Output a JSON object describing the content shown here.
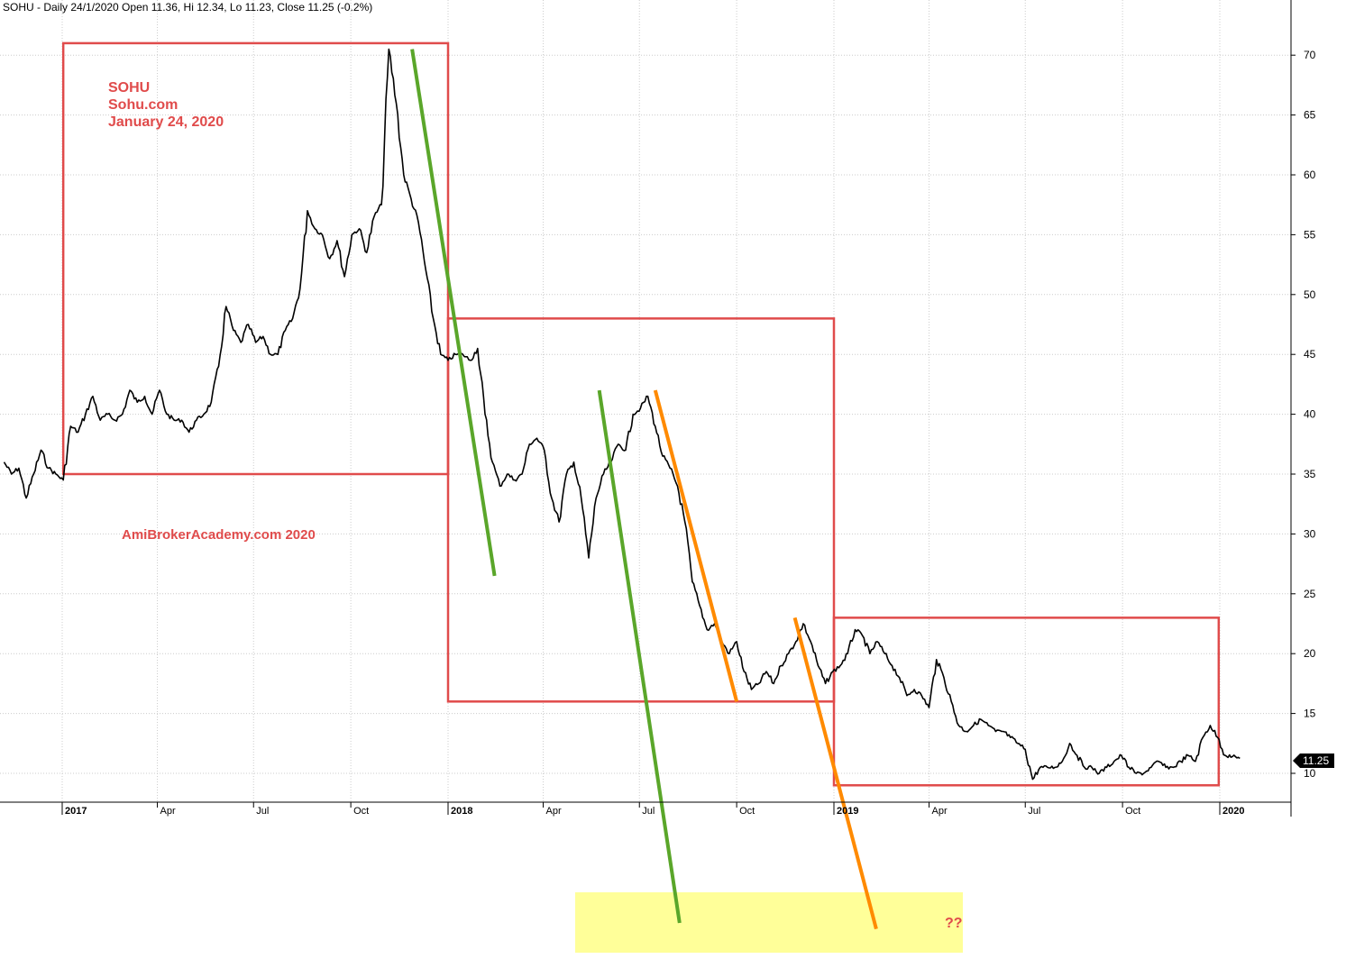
{
  "header": "SOHU - Daily 24/1/2020 Open 11.36, Hi 12.34, Lo 11.23, Close 11.25 (-0.2%)",
  "colors": {
    "price": "#000000",
    "box": "#e04b4b",
    "green_line": "#5aa62a",
    "orange_line": "#ff8a00",
    "highlight": "#ffff99",
    "annotation": "#e04b4b",
    "grid": "#cccccc",
    "badge": "#000000"
  },
  "annotations": {
    "title_lines": [
      "SOHU",
      "Sohu.com",
      "January 24, 2020"
    ],
    "watermark": "AmiBrokerAcademy.com  2020",
    "question": "??"
  },
  "last_price_label": "11.25",
  "chart_data": {
    "type": "line",
    "ylim": [
      8.5,
      72
    ],
    "y_ticks": [
      10,
      15,
      20,
      25,
      30,
      35,
      40,
      45,
      50,
      55,
      60,
      65,
      70
    ],
    "x_ticks": [
      {
        "label": "2017",
        "major": true
      },
      {
        "label": "Apr",
        "major": false
      },
      {
        "label": "Jul",
        "major": false
      },
      {
        "label": "Oct",
        "major": false
      },
      {
        "label": "2018",
        "major": true
      },
      {
        "label": "Apr",
        "major": false
      },
      {
        "label": "Jul",
        "major": false
      },
      {
        "label": "Oct",
        "major": false
      },
      {
        "label": "2019",
        "major": true
      },
      {
        "label": "Apr",
        "major": false
      },
      {
        "label": "Jul",
        "major": false
      },
      {
        "label": "Oct",
        "major": false
      },
      {
        "label": "2020",
        "major": true
      }
    ],
    "series": [
      {
        "points": [
          [
            "2016-11-07",
            36
          ],
          [
            "2016-11-14",
            35
          ],
          [
            "2016-11-21",
            35.5
          ],
          [
            "2016-11-28",
            33
          ],
          [
            "2016-12-05",
            35
          ],
          [
            "2016-12-12",
            37
          ],
          [
            "2016-12-19",
            35.5
          ],
          [
            "2016-12-26",
            35
          ],
          [
            "2017-01-02",
            34.5
          ],
          [
            "2017-01-09",
            39
          ],
          [
            "2017-01-16",
            38.5
          ],
          [
            "2017-01-23",
            40
          ],
          [
            "2017-01-30",
            41.5
          ],
          [
            "2017-02-06",
            39.5
          ],
          [
            "2017-02-13",
            40
          ],
          [
            "2017-02-20",
            39.5
          ],
          [
            "2017-02-27",
            40
          ],
          [
            "2017-03-06",
            42
          ],
          [
            "2017-03-13",
            41
          ],
          [
            "2017-03-20",
            41.5
          ],
          [
            "2017-03-27",
            40
          ],
          [
            "2017-04-03",
            42
          ],
          [
            "2017-04-10",
            40
          ],
          [
            "2017-04-17",
            39.5
          ],
          [
            "2017-04-24",
            39.5
          ],
          [
            "2017-05-01",
            38.5
          ],
          [
            "2017-05-08",
            39.5
          ],
          [
            "2017-05-15",
            40
          ],
          [
            "2017-05-22",
            41
          ],
          [
            "2017-05-29",
            44
          ],
          [
            "2017-06-05",
            49
          ],
          [
            "2017-06-12",
            47
          ],
          [
            "2017-06-19",
            46
          ],
          [
            "2017-06-26",
            47.5
          ],
          [
            "2017-07-03",
            46
          ],
          [
            "2017-07-10",
            46.5
          ],
          [
            "2017-07-17",
            45
          ],
          [
            "2017-07-24",
            45
          ],
          [
            "2017-07-31",
            47
          ],
          [
            "2017-08-07",
            48
          ],
          [
            "2017-08-14",
            50.5
          ],
          [
            "2017-08-21",
            57
          ],
          [
            "2017-08-28",
            55.5
          ],
          [
            "2017-09-04",
            55
          ],
          [
            "2017-09-11",
            53
          ],
          [
            "2017-09-18",
            54.5
          ],
          [
            "2017-09-25",
            51.5
          ],
          [
            "2017-10-02",
            55
          ],
          [
            "2017-10-09",
            55.5
          ],
          [
            "2017-10-16",
            53.5
          ],
          [
            "2017-10-23",
            56.5
          ],
          [
            "2017-10-30",
            57.5
          ],
          [
            "2017-11-06",
            70.5
          ],
          [
            "2017-11-13",
            66
          ],
          [
            "2017-11-20",
            60
          ],
          [
            "2017-11-27",
            58
          ],
          [
            "2017-12-04",
            56
          ],
          [
            "2017-12-11",
            52
          ],
          [
            "2017-12-18",
            48
          ],
          [
            "2017-12-25",
            45
          ],
          [
            "2018-01-01",
            44.5
          ],
          [
            "2018-01-08",
            45
          ],
          [
            "2018-01-15",
            45
          ],
          [
            "2018-01-22",
            44.5
          ],
          [
            "2018-01-29",
            45.5
          ],
          [
            "2018-02-05",
            40
          ],
          [
            "2018-02-12",
            36
          ],
          [
            "2018-02-19",
            34
          ],
          [
            "2018-02-26",
            35
          ],
          [
            "2018-03-05",
            34.5
          ],
          [
            "2018-03-12",
            35
          ],
          [
            "2018-03-19",
            37.5
          ],
          [
            "2018-03-26",
            38
          ],
          [
            "2018-04-02",
            37
          ],
          [
            "2018-04-09",
            33
          ],
          [
            "2018-04-16",
            31
          ],
          [
            "2018-04-23",
            35
          ],
          [
            "2018-04-30",
            36
          ],
          [
            "2018-05-07",
            33
          ],
          [
            "2018-05-14",
            28
          ],
          [
            "2018-05-21",
            33
          ],
          [
            "2018-05-28",
            35
          ],
          [
            "2018-06-04",
            36
          ],
          [
            "2018-06-11",
            37.5
          ],
          [
            "2018-06-18",
            37
          ],
          [
            "2018-06-25",
            40
          ],
          [
            "2018-07-02",
            40.5
          ],
          [
            "2018-07-09",
            41.5
          ],
          [
            "2018-07-16",
            39
          ],
          [
            "2018-07-23",
            36.5
          ],
          [
            "2018-07-30",
            35.5
          ],
          [
            "2018-08-06",
            34
          ],
          [
            "2018-08-13",
            31
          ],
          [
            "2018-08-20",
            26
          ],
          [
            "2018-08-27",
            24
          ],
          [
            "2018-09-03",
            22
          ],
          [
            "2018-09-10",
            22.5
          ],
          [
            "2018-09-17",
            21
          ],
          [
            "2018-09-24",
            20
          ],
          [
            "2018-10-01",
            21
          ],
          [
            "2018-10-08",
            18.5
          ],
          [
            "2018-10-15",
            17
          ],
          [
            "2018-10-22",
            17.5
          ],
          [
            "2018-10-29",
            18.5
          ],
          [
            "2018-11-05",
            17.5
          ],
          [
            "2018-11-12",
            19
          ],
          [
            "2018-11-19",
            20
          ],
          [
            "2018-11-26",
            21
          ],
          [
            "2018-12-03",
            22.5
          ],
          [
            "2018-12-10",
            21
          ],
          [
            "2018-12-17",
            19
          ],
          [
            "2018-12-24",
            17.5
          ],
          [
            "2018-12-31",
            18.5
          ],
          [
            "2019-01-07",
            19
          ],
          [
            "2019-01-14",
            20
          ],
          [
            "2019-01-21",
            22
          ],
          [
            "2019-01-28",
            21.5
          ],
          [
            "2019-02-04",
            20
          ],
          [
            "2019-02-11",
            21
          ],
          [
            "2019-02-18",
            20
          ],
          [
            "2019-02-25",
            19
          ],
          [
            "2019-03-04",
            18
          ],
          [
            "2019-03-11",
            16.5
          ],
          [
            "2019-03-18",
            17
          ],
          [
            "2019-03-25",
            16.5
          ],
          [
            "2019-04-01",
            15.5
          ],
          [
            "2019-04-08",
            19.5
          ],
          [
            "2019-04-15",
            18
          ],
          [
            "2019-04-22",
            16
          ],
          [
            "2019-04-29",
            14
          ],
          [
            "2019-05-06",
            13.5
          ],
          [
            "2019-05-13",
            14
          ],
          [
            "2019-05-20",
            14.5
          ],
          [
            "2019-05-27",
            14
          ],
          [
            "2019-06-03",
            13.5
          ],
          [
            "2019-06-10",
            13.5
          ],
          [
            "2019-06-17",
            13
          ],
          [
            "2019-06-24",
            12.5
          ],
          [
            "2019-07-01",
            12
          ],
          [
            "2019-07-08",
            9.5
          ],
          [
            "2019-07-15",
            10.5
          ],
          [
            "2019-07-22",
            10.5
          ],
          [
            "2019-07-29",
            10.5
          ],
          [
            "2019-08-05",
            11
          ],
          [
            "2019-08-12",
            12.5
          ],
          [
            "2019-08-19",
            11.5
          ],
          [
            "2019-08-26",
            10.5
          ],
          [
            "2019-09-02",
            10.5
          ],
          [
            "2019-09-09",
            10
          ],
          [
            "2019-09-16",
            10.5
          ],
          [
            "2019-09-23",
            11
          ],
          [
            "2019-09-30",
            11.5
          ],
          [
            "2019-10-07",
            10.5
          ],
          [
            "2019-10-14",
            10
          ],
          [
            "2019-10-21",
            10
          ],
          [
            "2019-10-28",
            10.5
          ],
          [
            "2019-11-04",
            11
          ],
          [
            "2019-11-11",
            10.5
          ],
          [
            "2019-11-18",
            10.5
          ],
          [
            "2019-11-25",
            11
          ],
          [
            "2019-12-02",
            11.5
          ],
          [
            "2019-12-09",
            11
          ],
          [
            "2019-12-16",
            13
          ],
          [
            "2019-12-23",
            14
          ],
          [
            "2019-12-30",
            13
          ],
          [
            "2020-01-06",
            11.5
          ],
          [
            "2020-01-13",
            11.4
          ],
          [
            "2020-01-20",
            11.25
          ]
        ]
      }
    ],
    "boxes": [
      {
        "x0": "2017-01-02",
        "x1": "2018-01-01",
        "y0": 35,
        "y1": 71
      },
      {
        "x0": "2018-01-01",
        "x1": "2019-01-01",
        "y0": 16,
        "y1": 48
      },
      {
        "x0": "2019-01-01",
        "x1": "2019-12-31",
        "y0": 9,
        "y1": 23
      }
    ],
    "trend_lines": [
      {
        "color": "green",
        "from": [
          "2017-11-28",
          70.5
        ],
        "to": [
          "2018-02-14",
          26.5
        ]
      },
      {
        "color": "green",
        "from": [
          "2018-05-24",
          42
        ],
        "to": [
          "2018-08-08",
          -2.5
        ]
      },
      {
        "color": "orange",
        "from": [
          "2018-07-16",
          42
        ],
        "to": [
          "2018-10-01",
          16
        ]
      },
      {
        "color": "orange",
        "from": [
          "2018-11-25",
          23
        ],
        "to": [
          "2019-02-10",
          -3
        ]
      }
    ]
  }
}
